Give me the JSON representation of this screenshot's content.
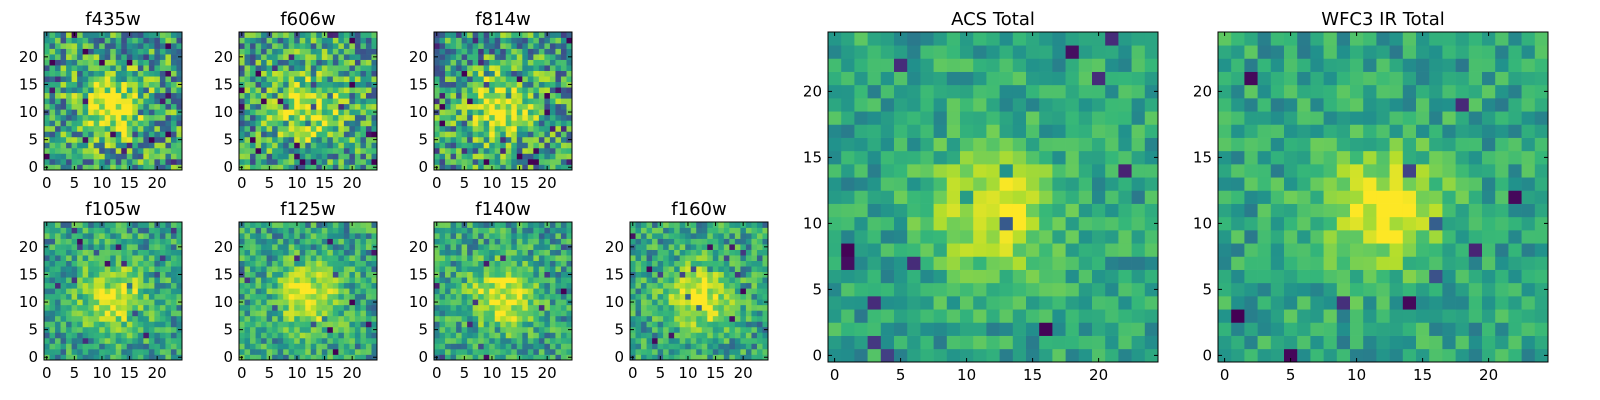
{
  "chart_data": [
    {
      "type": "heatmap",
      "title": "f435w",
      "xlim": [
        -0.5,
        24.5
      ],
      "ylim": [
        -0.5,
        24.5
      ],
      "xticks": [
        0,
        5,
        10,
        15,
        20
      ],
      "yticks": [
        0,
        5,
        10,
        15,
        20
      ],
      "colormap": "viridis",
      "z_shape": [
        25,
        25
      ],
      "feature": "faint central source",
      "noise": "high"
    },
    {
      "type": "heatmap",
      "title": "f606w",
      "xlim": [
        -0.5,
        24.5
      ],
      "ylim": [
        -0.5,
        24.5
      ],
      "xticks": [
        0,
        5,
        10,
        15,
        20
      ],
      "yticks": [
        0,
        5,
        10,
        15,
        20
      ],
      "colormap": "viridis",
      "z_shape": [
        25,
        25
      ],
      "feature": "central source",
      "noise": "high"
    },
    {
      "type": "heatmap",
      "title": "f814w",
      "xlim": [
        -0.5,
        24.5
      ],
      "ylim": [
        -0.5,
        24.5
      ],
      "xticks": [
        0,
        5,
        10,
        15,
        20
      ],
      "yticks": [
        0,
        5,
        10,
        15,
        20
      ],
      "colormap": "viridis",
      "z_shape": [
        25,
        25
      ],
      "feature": "central source",
      "noise": "high"
    },
    {
      "type": "heatmap",
      "title": "f105w",
      "xlim": [
        -0.5,
        24.5
      ],
      "ylim": [
        -0.5,
        24.5
      ],
      "xticks": [
        0,
        5,
        10,
        15,
        20
      ],
      "yticks": [
        0,
        5,
        10,
        15,
        20
      ],
      "colormap": "viridis",
      "z_shape": [
        25,
        25
      ],
      "feature": "extended source",
      "noise": "medium"
    },
    {
      "type": "heatmap",
      "title": "f125w",
      "xlim": [
        -0.5,
        24.5
      ],
      "ylim": [
        -0.5,
        24.5
      ],
      "xticks": [
        0,
        5,
        10,
        15,
        20
      ],
      "yticks": [
        0,
        5,
        10,
        15,
        20
      ],
      "colormap": "viridis",
      "z_shape": [
        25,
        25
      ],
      "feature": "extended source",
      "noise": "medium"
    },
    {
      "type": "heatmap",
      "title": "f140w",
      "xlim": [
        -0.5,
        24.5
      ],
      "ylim": [
        -0.5,
        24.5
      ],
      "xticks": [
        0,
        5,
        10,
        15,
        20
      ],
      "yticks": [
        0,
        5,
        10,
        15,
        20
      ],
      "colormap": "viridis",
      "z_shape": [
        25,
        25
      ],
      "feature": "extended source",
      "noise": "medium"
    },
    {
      "type": "heatmap",
      "title": "f160w",
      "xlim": [
        -0.5,
        24.5
      ],
      "ylim": [
        -0.5,
        24.5
      ],
      "xticks": [
        0,
        5,
        10,
        15,
        20
      ],
      "yticks": [
        0,
        5,
        10,
        15,
        20
      ],
      "colormap": "viridis",
      "z_shape": [
        25,
        25
      ],
      "feature": "extended source",
      "noise": "medium"
    },
    {
      "type": "heatmap",
      "title": "ACS Total",
      "xlim": [
        -0.5,
        24.5
      ],
      "ylim": [
        -0.5,
        24.5
      ],
      "xticks": [
        0,
        5,
        10,
        15,
        20
      ],
      "yticks": [
        0,
        5,
        10,
        15,
        20
      ],
      "colormap": "viridis",
      "z_shape": [
        25,
        25
      ],
      "feature": "bright central source",
      "noise": "low"
    },
    {
      "type": "heatmap",
      "title": "WFC3 IR Total",
      "xlim": [
        -0.5,
        24.5
      ],
      "ylim": [
        -0.5,
        24.5
      ],
      "xticks": [
        0,
        5,
        10,
        15,
        20
      ],
      "yticks": [
        0,
        5,
        10,
        15,
        20
      ],
      "colormap": "viridis",
      "z_shape": [
        25,
        25
      ],
      "feature": "bright central source",
      "noise": "low"
    }
  ]
}
